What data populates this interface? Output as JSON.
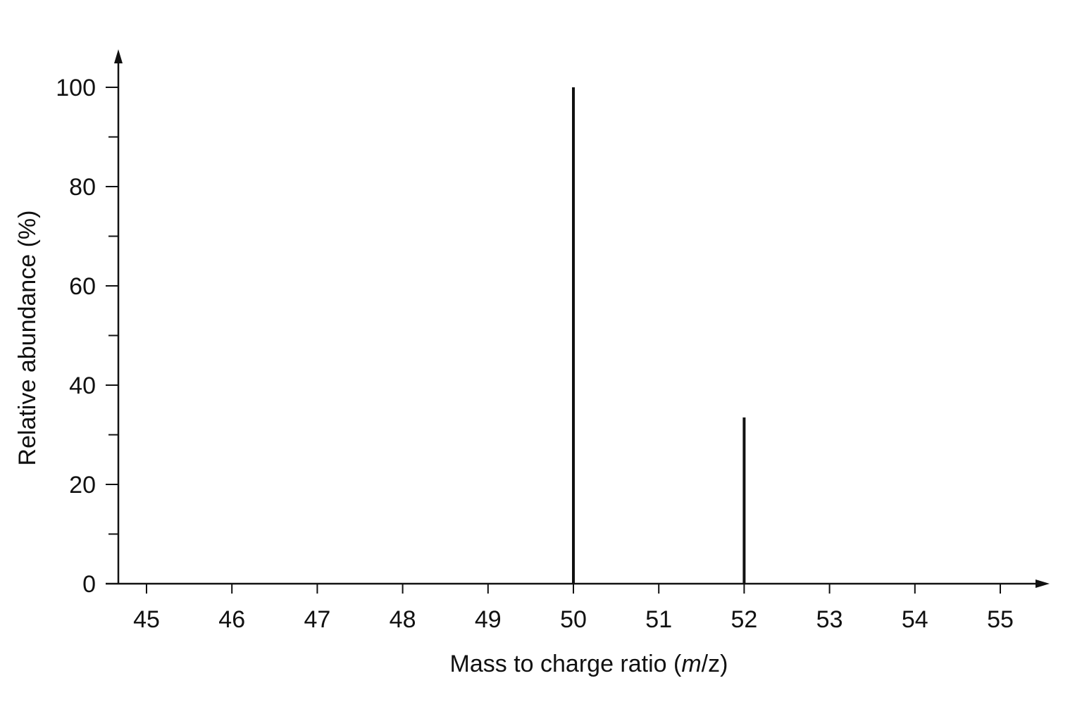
{
  "chart_data": {
    "type": "bar",
    "title": "",
    "xlabel": {
      "prefix": "Mass to charge ratio (",
      "italic": "m",
      "suffix": "/z)"
    },
    "ylabel": "Relative abundance (%)",
    "x_ticks": [
      45,
      46,
      47,
      48,
      49,
      50,
      51,
      52,
      53,
      54,
      55
    ],
    "y_ticks": [
      0,
      20,
      40,
      60,
      80,
      100
    ],
    "y_minor_ticks": [
      10,
      30,
      50,
      70,
      90
    ],
    "xlim": [
      44.7,
      55.6
    ],
    "ylim": [
      0,
      115
    ],
    "grid": false,
    "legend": "none",
    "series": [
      {
        "x": [
          50,
          52
        ],
        "values": [
          100,
          33.5
        ]
      }
    ],
    "colors": {
      "ink": "#111111",
      "background": "#ffffff"
    }
  }
}
